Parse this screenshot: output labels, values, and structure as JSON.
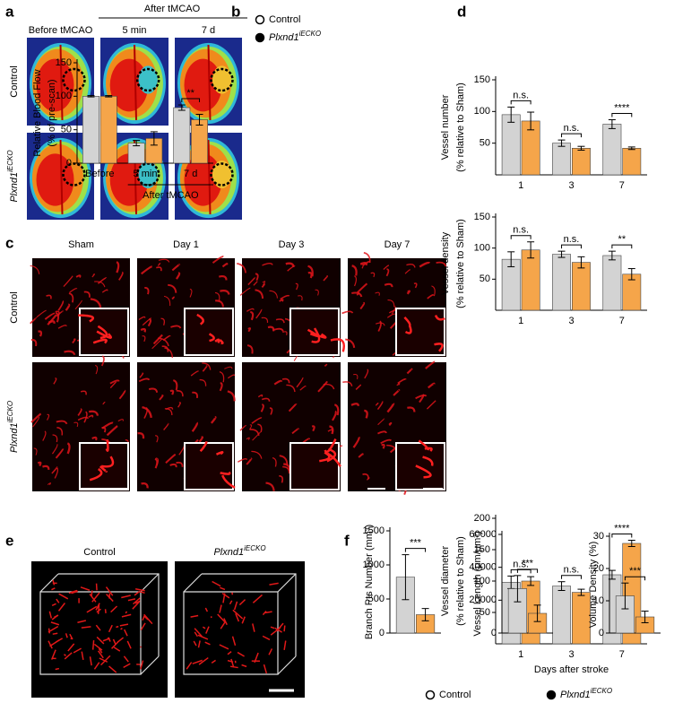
{
  "panel_labels": [
    "a",
    "b",
    "c",
    "d",
    "e",
    "f"
  ],
  "panel_a": {
    "group_label": "After tMCAO",
    "columns": [
      "Before tMCAO",
      "5 min",
      "7 d"
    ],
    "rows": [
      {
        "text": "Control"
      },
      {
        "text": "Plxnd1",
        "sup": "iECKO"
      }
    ]
  },
  "panel_c": {
    "columns": [
      "Sham",
      "Day 1",
      "Day 3",
      "Day 7"
    ],
    "rows": [
      {
        "text": "Control"
      },
      {
        "text": "Plxnd1",
        "sup": "iECKO"
      }
    ]
  },
  "panel_e": {
    "columns": [
      {
        "text": "Control"
      },
      {
        "text": "Plxnd1",
        "sup": "iECKO"
      }
    ]
  },
  "chart_data": [
    {
      "type": "bar",
      "ylabel": [
        "Relative Blood Flow",
        "(% of pre-scan)"
      ],
      "categories": [
        "Before",
        "5 min",
        "7 d"
      ],
      "group_label": "After tMCAO",
      "series": [
        {
          "name": "Control",
          "color": "#d3d3d3",
          "values": [
            100,
            30,
            83
          ],
          "errors": [
            1,
            4,
            4
          ]
        },
        {
          "name": "Plxnd1",
          "name_sup": "iECKO",
          "color": "#f5a54a",
          "values": [
            100,
            37,
            65
          ],
          "errors": [
            1,
            10,
            8
          ]
        }
      ],
      "annotations": [
        null,
        null,
        "**"
      ],
      "ylim": [
        0,
        150
      ],
      "yticks": [
        0,
        50,
        100,
        150
      ],
      "legend": "top"
    },
    {
      "type": "bar",
      "ylabel": [
        "Vessel number",
        "(% relative to Sham)"
      ],
      "categories": [
        "1",
        "3",
        "7"
      ],
      "series": [
        {
          "color": "#d3d3d3",
          "values": [
            95,
            50,
            80
          ],
          "errors": [
            12,
            5,
            7
          ]
        },
        {
          "color": "#f5a54a",
          "values": [
            85,
            42,
            42
          ],
          "errors": [
            14,
            3,
            2
          ]
        }
      ],
      "annotations": [
        "n.s.",
        "n.s.",
        "****"
      ],
      "ylim": [
        0,
        150
      ],
      "yticks": [
        50,
        100,
        150
      ]
    },
    {
      "type": "bar",
      "ylabel": [
        "Vessel density",
        "(% relative to Sham)"
      ],
      "categories": [
        "1",
        "3",
        "7"
      ],
      "series": [
        {
          "color": "#d3d3d3",
          "values": [
            82,
            90,
            88
          ],
          "errors": [
            12,
            5,
            7
          ]
        },
        {
          "color": "#f5a54a",
          "values": [
            97,
            77,
            58
          ],
          "errors": [
            13,
            9,
            9
          ]
        }
      ],
      "annotations": [
        "n.s.",
        "n.s.",
        "**"
      ],
      "ylim": [
        0,
        150
      ],
      "yticks": [
        50,
        100,
        150
      ]
    },
    {
      "type": "bar",
      "ylabel": [
        "Vessel diameter",
        "(% relative to Sham)"
      ],
      "categories": [
        "1",
        "3",
        "7"
      ],
      "xlabel": "Days after stroke",
      "series": [
        {
          "color": "#d3d3d3",
          "values": [
            98,
            92,
            110
          ],
          "errors": [
            10,
            7,
            7
          ]
        },
        {
          "color": "#f5a54a",
          "values": [
            100,
            82,
            160
          ],
          "errors": [
            7,
            5,
            5
          ]
        }
      ],
      "annotations": [
        "n.s.",
        "n.s.",
        "****"
      ],
      "ylim": [
        0,
        200
      ],
      "yticks": [
        50,
        100,
        150,
        200
      ]
    },
    {
      "type": "bar",
      "ylabel": [
        "Branch Pts Number (mm³)"
      ],
      "categories": [
        null
      ],
      "series": [
        {
          "name": "Control",
          "color": "#d3d3d3",
          "values": [
            820
          ],
          "errors": [
            330
          ]
        },
        {
          "name": "Plxnd1",
          "name_sup": "iECKO",
          "color": "#f5a54a",
          "values": [
            270
          ],
          "errors": [
            90
          ]
        }
      ],
      "annotations": [
        "***"
      ],
      "ylim": [
        0,
        1500
      ],
      "yticks": [
        0,
        500,
        1000,
        1500
      ],
      "legend": "bottom"
    },
    {
      "type": "bar",
      "ylabel": [
        "Vessel Length (μm/μm³)"
      ],
      "categories": [
        null
      ],
      "series": [
        {
          "color": "#d3d3d3",
          "values": [
            27000
          ],
          "errors": [
            8000
          ]
        },
        {
          "color": "#f5a54a",
          "values": [
            12000
          ],
          "errors": [
            5000
          ]
        }
      ],
      "annotations": [
        "***"
      ],
      "ylim": [
        0,
        60000
      ],
      "yticks": [
        0,
        20000,
        40000,
        60000
      ]
    },
    {
      "type": "bar",
      "ylabel": [
        "Volume Density (%)"
      ],
      "categories": [
        null
      ],
      "series": [
        {
          "color": "#d3d3d3",
          "values": [
            11.5
          ],
          "errors": [
            4
          ]
        },
        {
          "color": "#f5a54a",
          "values": [
            5
          ],
          "errors": [
            1.8
          ]
        }
      ],
      "annotations": [
        "***"
      ],
      "ylim": [
        0,
        30
      ],
      "yticks": [
        0,
        10,
        20,
        30
      ]
    }
  ]
}
